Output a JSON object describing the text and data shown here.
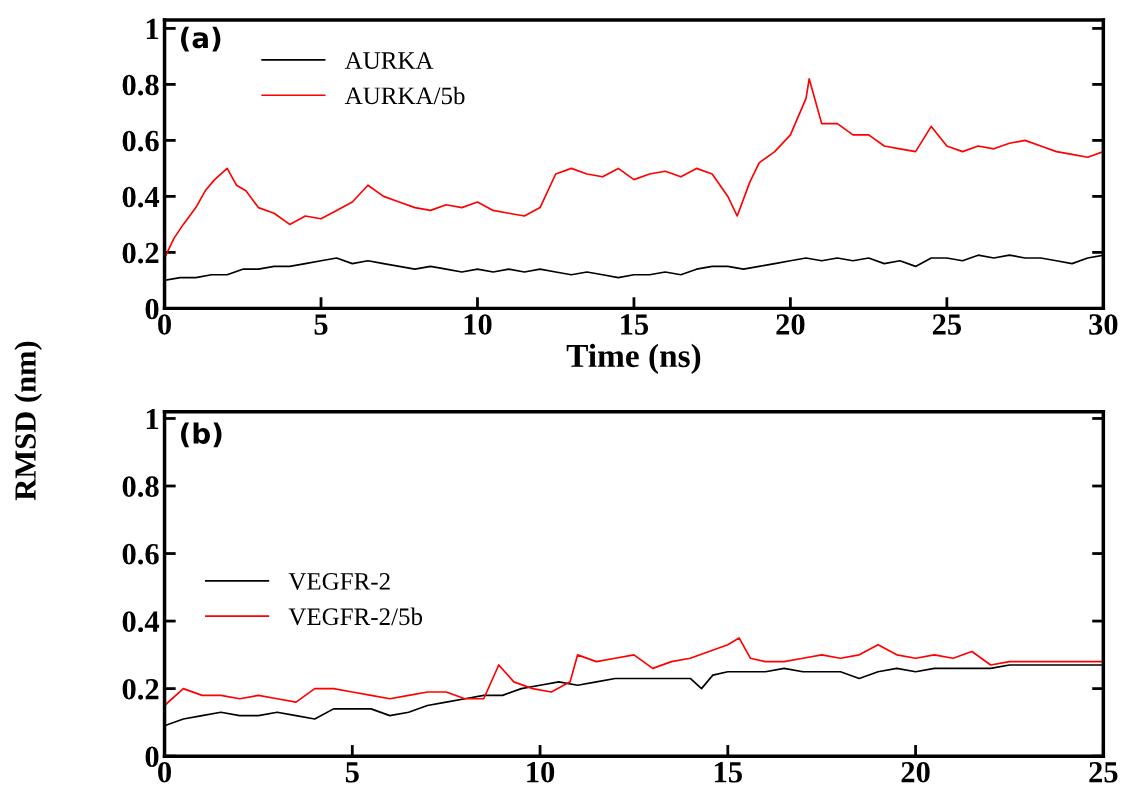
{
  "chart_data": [
    {
      "type": "line",
      "xlabel": "Time (ns)",
      "ylabel": "RMSD (nm)",
      "annotations": [
        "(a)"
      ],
      "legend": "top left",
      "grid": false,
      "xlim": [
        0,
        30
      ],
      "ylim": [
        0,
        1.03
      ],
      "xticks": [
        0,
        5,
        10,
        15,
        20,
        25,
        30
      ],
      "yticks": [
        0,
        0.2,
        0.4,
        0.6,
        0.8,
        1
      ],
      "series": [
        {
          "name": "AURKA",
          "color": "#000000",
          "x": [
            0,
            0.5,
            1,
            1.5,
            2,
            2.5,
            3,
            3.5,
            4,
            4.5,
            5,
            5.5,
            6,
            6.5,
            7,
            7.5,
            8,
            8.5,
            9,
            9.5,
            10,
            10.5,
            11,
            11.5,
            12,
            12.5,
            13,
            13.5,
            14,
            14.5,
            15,
            15.5,
            16,
            16.5,
            17,
            17.5,
            18,
            18.5,
            19,
            19.5,
            20,
            20.5,
            21,
            21.5,
            22,
            22.5,
            23,
            23.5,
            24,
            24.5,
            25,
            25.5,
            26,
            26.5,
            27,
            27.5,
            28,
            28.5,
            29,
            29.5,
            30
          ],
          "values": [
            0.1,
            0.11,
            0.11,
            0.12,
            0.12,
            0.14,
            0.14,
            0.15,
            0.15,
            0.16,
            0.17,
            0.18,
            0.16,
            0.17,
            0.16,
            0.15,
            0.14,
            0.15,
            0.14,
            0.13,
            0.14,
            0.13,
            0.14,
            0.13,
            0.14,
            0.13,
            0.12,
            0.13,
            0.12,
            0.11,
            0.12,
            0.12,
            0.13,
            0.12,
            0.14,
            0.15,
            0.15,
            0.14,
            0.15,
            0.16,
            0.17,
            0.18,
            0.17,
            0.18,
            0.17,
            0.18,
            0.16,
            0.17,
            0.15,
            0.18,
            0.18,
            0.17,
            0.19,
            0.18,
            0.19,
            0.18,
            0.18,
            0.17,
            0.16,
            0.18,
            0.19
          ]
        },
        {
          "name": "AURKA/5b",
          "color": "#ff0000",
          "x": [
            0,
            0.3,
            0.6,
            1,
            1.3,
            1.6,
            2,
            2.3,
            2.6,
            3,
            3.5,
            4,
            4.5,
            5,
            5.5,
            6,
            6.5,
            7,
            7.5,
            8,
            8.5,
            9,
            9.5,
            10,
            10.5,
            11,
            11.5,
            12,
            12.5,
            13,
            13.5,
            14,
            14.5,
            15,
            15.5,
            16,
            16.5,
            17,
            17.5,
            18,
            18.3,
            18.7,
            19,
            19.5,
            20,
            20.5,
            20.6,
            21,
            21.5,
            22,
            22.5,
            23,
            23.5,
            24,
            24.5,
            25,
            25.5,
            26,
            26.5,
            27,
            27.5,
            28,
            28.5,
            29,
            29.5,
            30
          ],
          "values": [
            0.18,
            0.25,
            0.3,
            0.36,
            0.42,
            0.46,
            0.5,
            0.44,
            0.42,
            0.36,
            0.34,
            0.3,
            0.33,
            0.32,
            0.35,
            0.38,
            0.44,
            0.4,
            0.38,
            0.36,
            0.35,
            0.37,
            0.36,
            0.38,
            0.35,
            0.34,
            0.33,
            0.36,
            0.48,
            0.5,
            0.48,
            0.47,
            0.5,
            0.46,
            0.48,
            0.49,
            0.47,
            0.5,
            0.48,
            0.4,
            0.33,
            0.45,
            0.52,
            0.56,
            0.62,
            0.75,
            0.82,
            0.66,
            0.66,
            0.62,
            0.62,
            0.58,
            0.57,
            0.56,
            0.65,
            0.58,
            0.56,
            0.58,
            0.57,
            0.59,
            0.6,
            0.58,
            0.56,
            0.55,
            0.54,
            0.56
          ]
        }
      ]
    },
    {
      "type": "line",
      "annotations": [
        "(b)"
      ],
      "legend": "center left",
      "grid": false,
      "xlim": [
        0,
        25
      ],
      "ylim": [
        0,
        1.02
      ],
      "xticks": [
        0,
        5,
        10,
        15,
        20,
        25
      ],
      "yticks": [
        0,
        0.2,
        0.4,
        0.6,
        0.8,
        1
      ],
      "series": [
        {
          "name": "VEGFR-2",
          "color": "#000000",
          "x": [
            0,
            0.5,
            1,
            1.5,
            2,
            2.5,
            3,
            3.5,
            4,
            4.5,
            5,
            5.5,
            6,
            6.5,
            7,
            7.5,
            8,
            8.5,
            9,
            9.5,
            10,
            10.5,
            11,
            11.5,
            12,
            12.5,
            13,
            13.5,
            14,
            14.3,
            14.6,
            15,
            15.5,
            16,
            16.5,
            17,
            17.5,
            18,
            18.5,
            19,
            19.5,
            20,
            20.5,
            21,
            21.5,
            22,
            22.5,
            23,
            23.5,
            24,
            24.5,
            25
          ],
          "values": [
            0.09,
            0.11,
            0.12,
            0.13,
            0.12,
            0.12,
            0.13,
            0.12,
            0.11,
            0.14,
            0.14,
            0.14,
            0.12,
            0.13,
            0.15,
            0.16,
            0.17,
            0.18,
            0.18,
            0.2,
            0.21,
            0.22,
            0.21,
            0.22,
            0.23,
            0.23,
            0.23,
            0.23,
            0.23,
            0.2,
            0.24,
            0.25,
            0.25,
            0.25,
            0.26,
            0.25,
            0.25,
            0.25,
            0.23,
            0.25,
            0.26,
            0.25,
            0.26,
            0.26,
            0.26,
            0.26,
            0.27,
            0.27,
            0.27,
            0.27,
            0.27,
            0.27
          ]
        },
        {
          "name": "VEGFR-2/5b",
          "color": "#ff0000",
          "x": [
            0,
            0.5,
            1,
            1.5,
            2,
            2.5,
            3,
            3.5,
            4,
            4.5,
            5,
            5.5,
            6,
            6.5,
            7,
            7.5,
            8,
            8.5,
            8.9,
            9.3,
            9.8,
            10.3,
            10.8,
            11,
            11.5,
            12,
            12.5,
            13,
            13.5,
            14,
            14.5,
            15,
            15.3,
            15.6,
            16,
            16.5,
            17,
            17.5,
            18,
            18.5,
            19,
            19.5,
            20,
            20.5,
            21,
            21.5,
            22,
            22.5,
            23,
            23.5,
            24,
            24.5,
            25
          ],
          "values": [
            0.15,
            0.2,
            0.18,
            0.18,
            0.17,
            0.18,
            0.17,
            0.16,
            0.2,
            0.2,
            0.19,
            0.18,
            0.17,
            0.18,
            0.19,
            0.19,
            0.17,
            0.17,
            0.27,
            0.22,
            0.2,
            0.19,
            0.22,
            0.3,
            0.28,
            0.29,
            0.3,
            0.26,
            0.28,
            0.29,
            0.31,
            0.33,
            0.35,
            0.29,
            0.28,
            0.28,
            0.29,
            0.3,
            0.29,
            0.3,
            0.33,
            0.3,
            0.29,
            0.3,
            0.29,
            0.31,
            0.27,
            0.28,
            0.28,
            0.28,
            0.28,
            0.28,
            0.28
          ]
        }
      ]
    }
  ]
}
